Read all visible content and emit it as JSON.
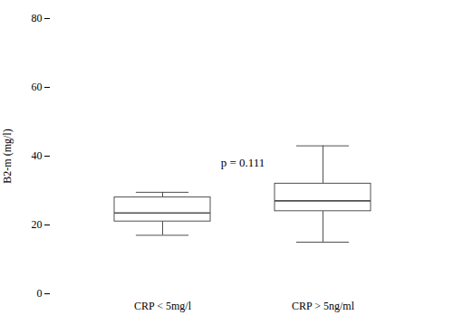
{
  "chart_data": {
    "type": "box",
    "categories": [
      "CRP < 5mg/l",
      "CRP > 5ng/ml"
    ],
    "whisker_low": [
      17,
      15
    ],
    "q1": [
      21,
      24
    ],
    "median": [
      23.5,
      27
    ],
    "q3": [
      28,
      32
    ],
    "whisker_high": [
      29.5,
      43
    ],
    "color": "#505050",
    "ylabel": "B2-m (mg/l)",
    "ylim": [
      0,
      80
    ],
    "yticks": [
      0,
      20,
      40,
      60,
      80
    ],
    "annotations": [
      {
        "text": "p = 0.111",
        "y": 38
      }
    ],
    "grid": false
  }
}
